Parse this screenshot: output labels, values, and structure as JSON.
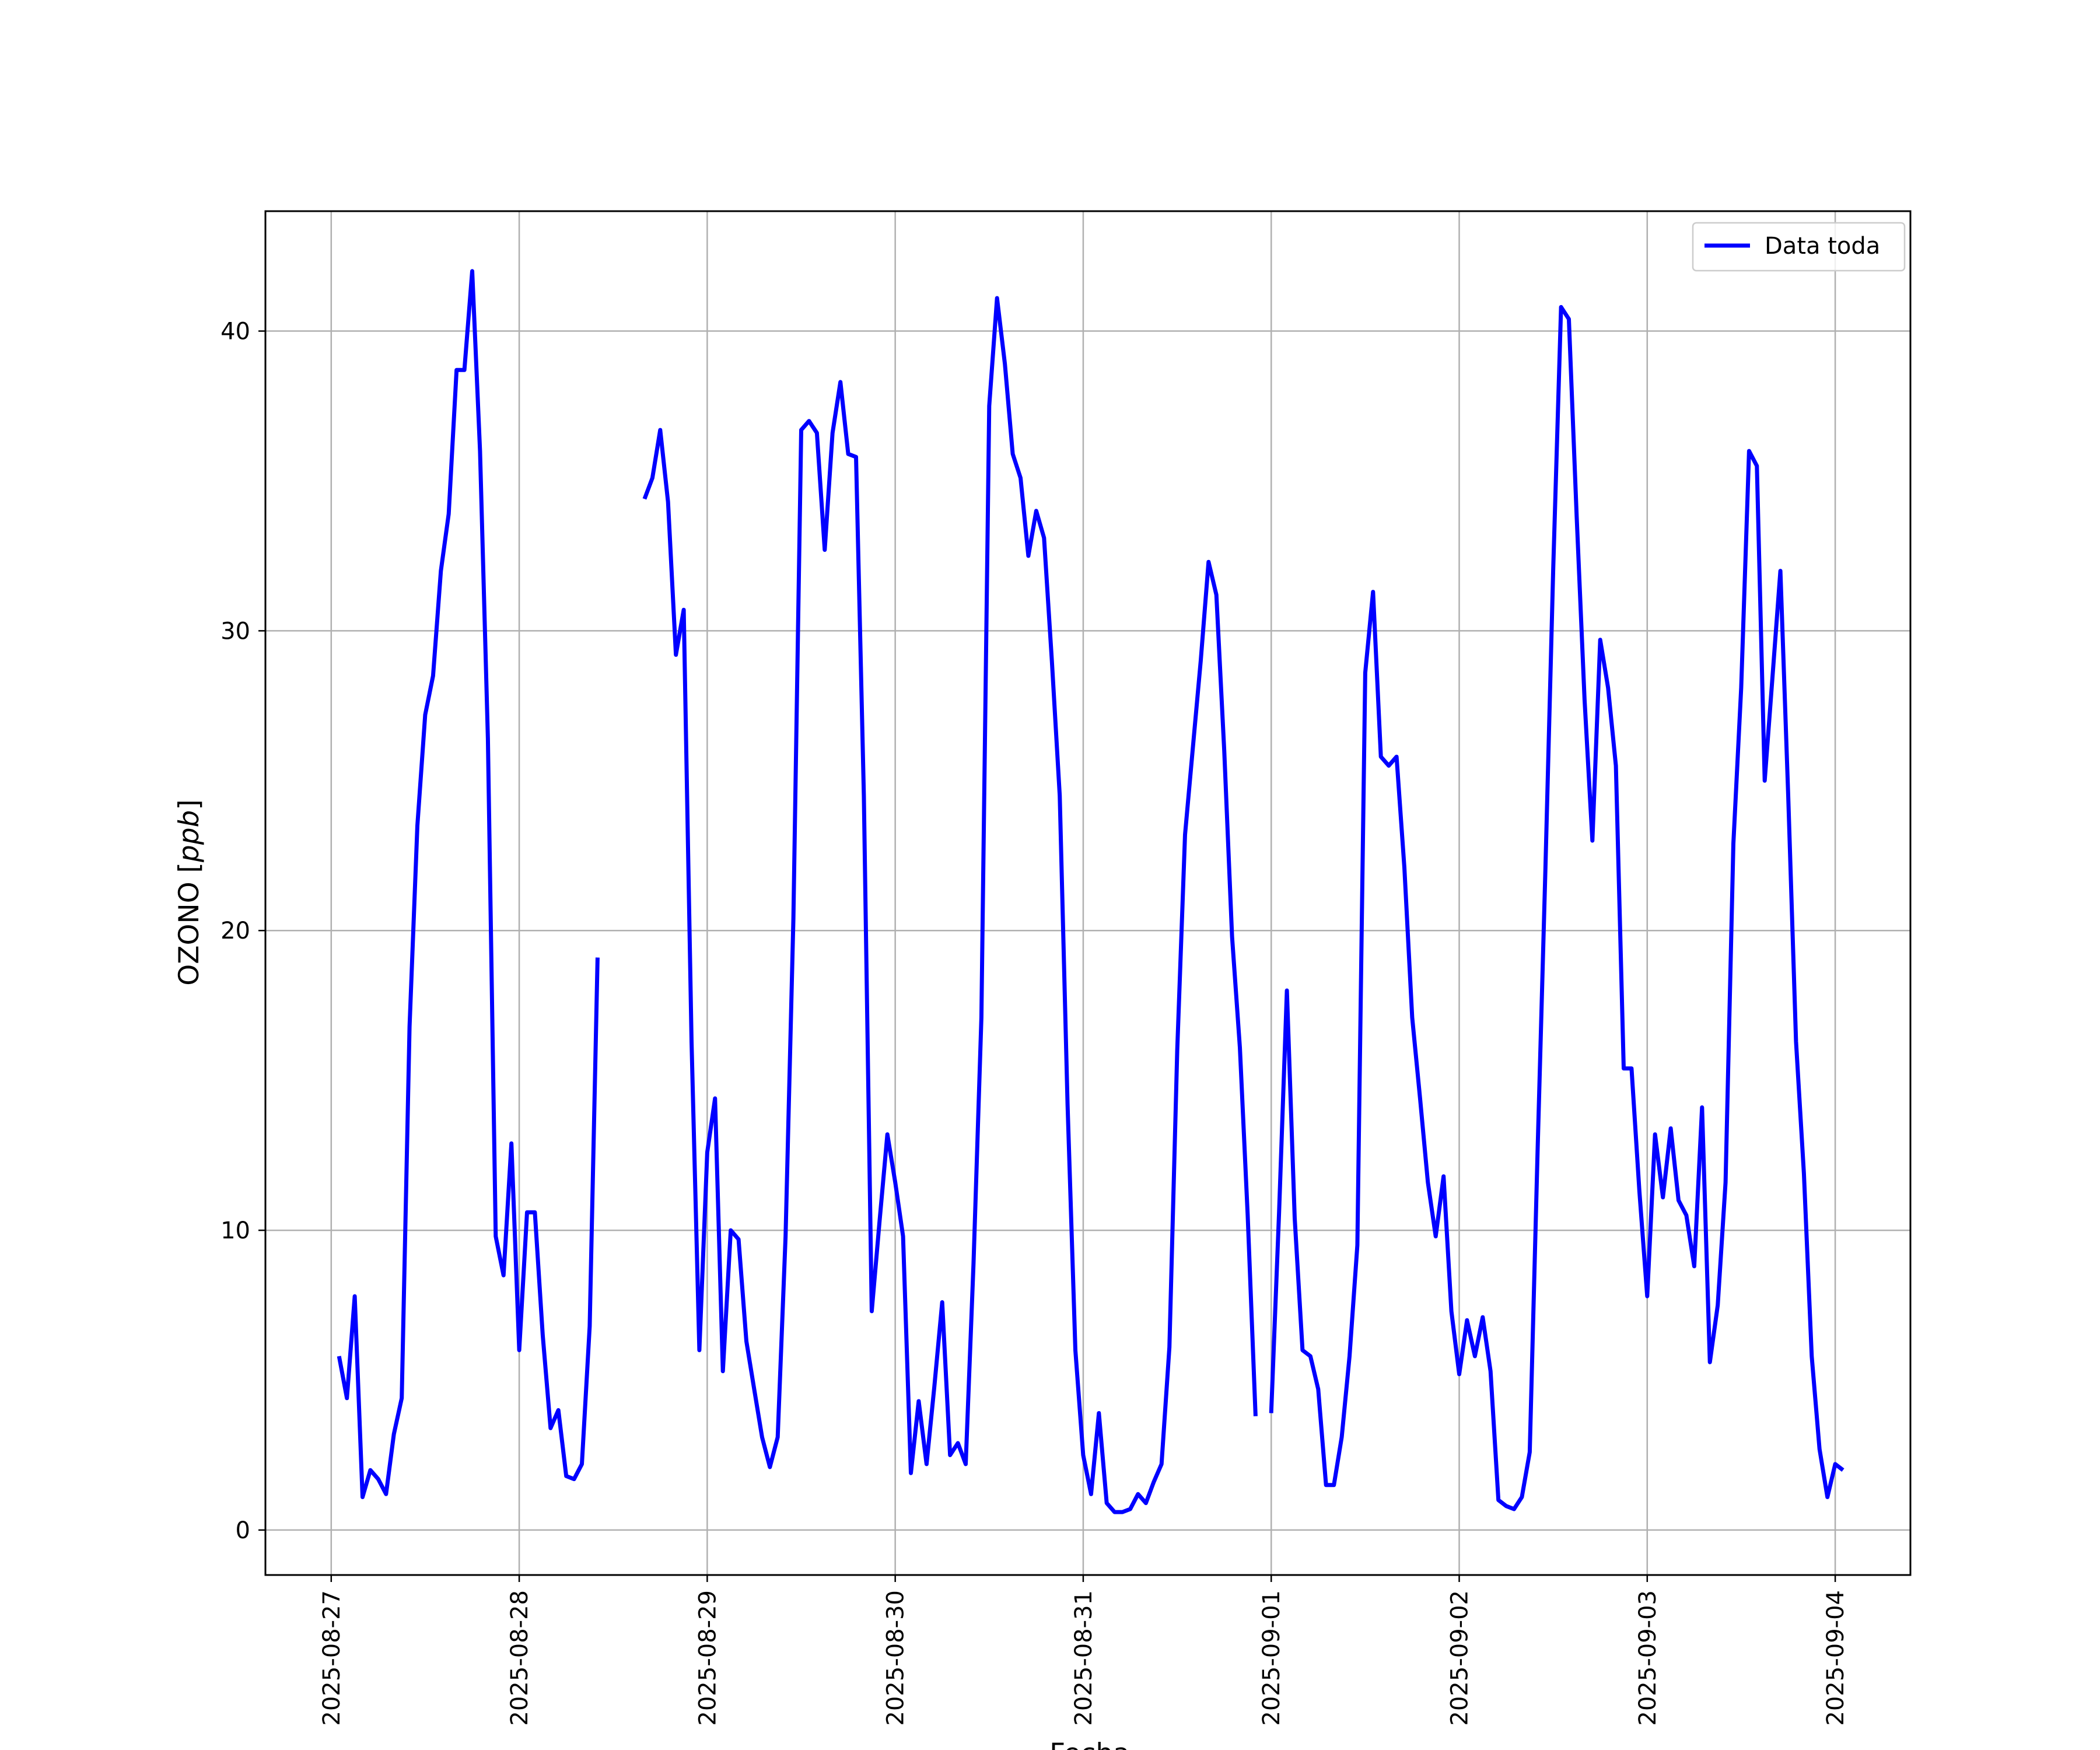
{
  "chart_data": {
    "type": "line",
    "xlabel": "Fecha",
    "ylabel_main": "OZONO",
    "ylabel_unit": "ppb",
    "ylim": [
      -1.5,
      44
    ],
    "xlim_days": [
      -0.35,
      8.4
    ],
    "grid": true,
    "legend_placement": "top-right",
    "x_ticks": [
      "2025-08-27",
      "2025-08-28",
      "2025-08-29",
      "2025-08-30",
      "2025-08-31",
      "2025-09-01",
      "2025-09-02",
      "2025-09-03",
      "2025-09-04"
    ],
    "y_ticks": [
      0,
      10,
      20,
      30,
      40
    ],
    "series": [
      {
        "name": "Data toda",
        "color": "#0000ff",
        "x_start": "2025-08-27 01:00",
        "step_hours": 1,
        "values": [
          5.8,
          4.4,
          7.8,
          1.1,
          2.0,
          1.7,
          1.2,
          3.2,
          4.4,
          16.8,
          23.5,
          27.2,
          28.5,
          32.0,
          33.9,
          38.7,
          38.7,
          42.0,
          36.0,
          26.4,
          9.8,
          8.5,
          12.9,
          6.0,
          10.6,
          10.6,
          6.5,
          3.4,
          4.0,
          1.8,
          1.7,
          2.2,
          6.8,
          19.1,
          null,
          null,
          null,
          null,
          null,
          34.4,
          35.1,
          36.7,
          34.3,
          29.2,
          30.7,
          16.3,
          6.0,
          12.6,
          14.4,
          5.3,
          10.0,
          9.7,
          6.3,
          4.7,
          3.1,
          2.1,
          3.1,
          9.8,
          20.4,
          36.7,
          37.0,
          36.6,
          32.7,
          36.6,
          38.3,
          35.9,
          35.8,
          24.5,
          7.3,
          10.3,
          13.2,
          11.6,
          9.8,
          1.9,
          4.3,
          2.2,
          4.8,
          7.6,
          2.5,
          2.9,
          2.2,
          8.9,
          17.1,
          37.5,
          41.1,
          38.9,
          35.9,
          35.1,
          32.5,
          34.0,
          33.1,
          29.0,
          24.5,
          14.2,
          6.0,
          2.5,
          1.2,
          3.9,
          0.9,
          0.6,
          0.6,
          0.7,
          1.2,
          0.9,
          1.6,
          2.2,
          6.1,
          16.0,
          23.2,
          26.1,
          29.0,
          32.3,
          31.2,
          26.0,
          19.8,
          16.1,
          10.5,
          3.8,
          null,
          3.9,
          10.6,
          18.0,
          10.4,
          6.0,
          5.8,
          4.7,
          1.5,
          1.5,
          3.1,
          5.8,
          9.5,
          28.6,
          31.3,
          25.8,
          25.5,
          25.8,
          22.1,
          17.1,
          14.4,
          11.6,
          9.8,
          11.8,
          7.3,
          5.2,
          7.0,
          5.8,
          7.1,
          5.3,
          1.0,
          0.8,
          0.7,
          1.1,
          2.6,
          12.6,
          22.0,
          32.1,
          40.8,
          40.4,
          33.8,
          27.7,
          23.0,
          29.7,
          28.1,
          25.5,
          15.4,
          15.4,
          11.3,
          7.8,
          13.2,
          11.1,
          13.4,
          11.0,
          10.5,
          8.8,
          14.1,
          5.6,
          7.5,
          11.6,
          22.9,
          28.1,
          36.0,
          35.5,
          25.0,
          28.5,
          32.0,
          24.5,
          16.3,
          11.9,
          5.8,
          2.7,
          1.1,
          2.2,
          2.0
        ]
      }
    ]
  }
}
